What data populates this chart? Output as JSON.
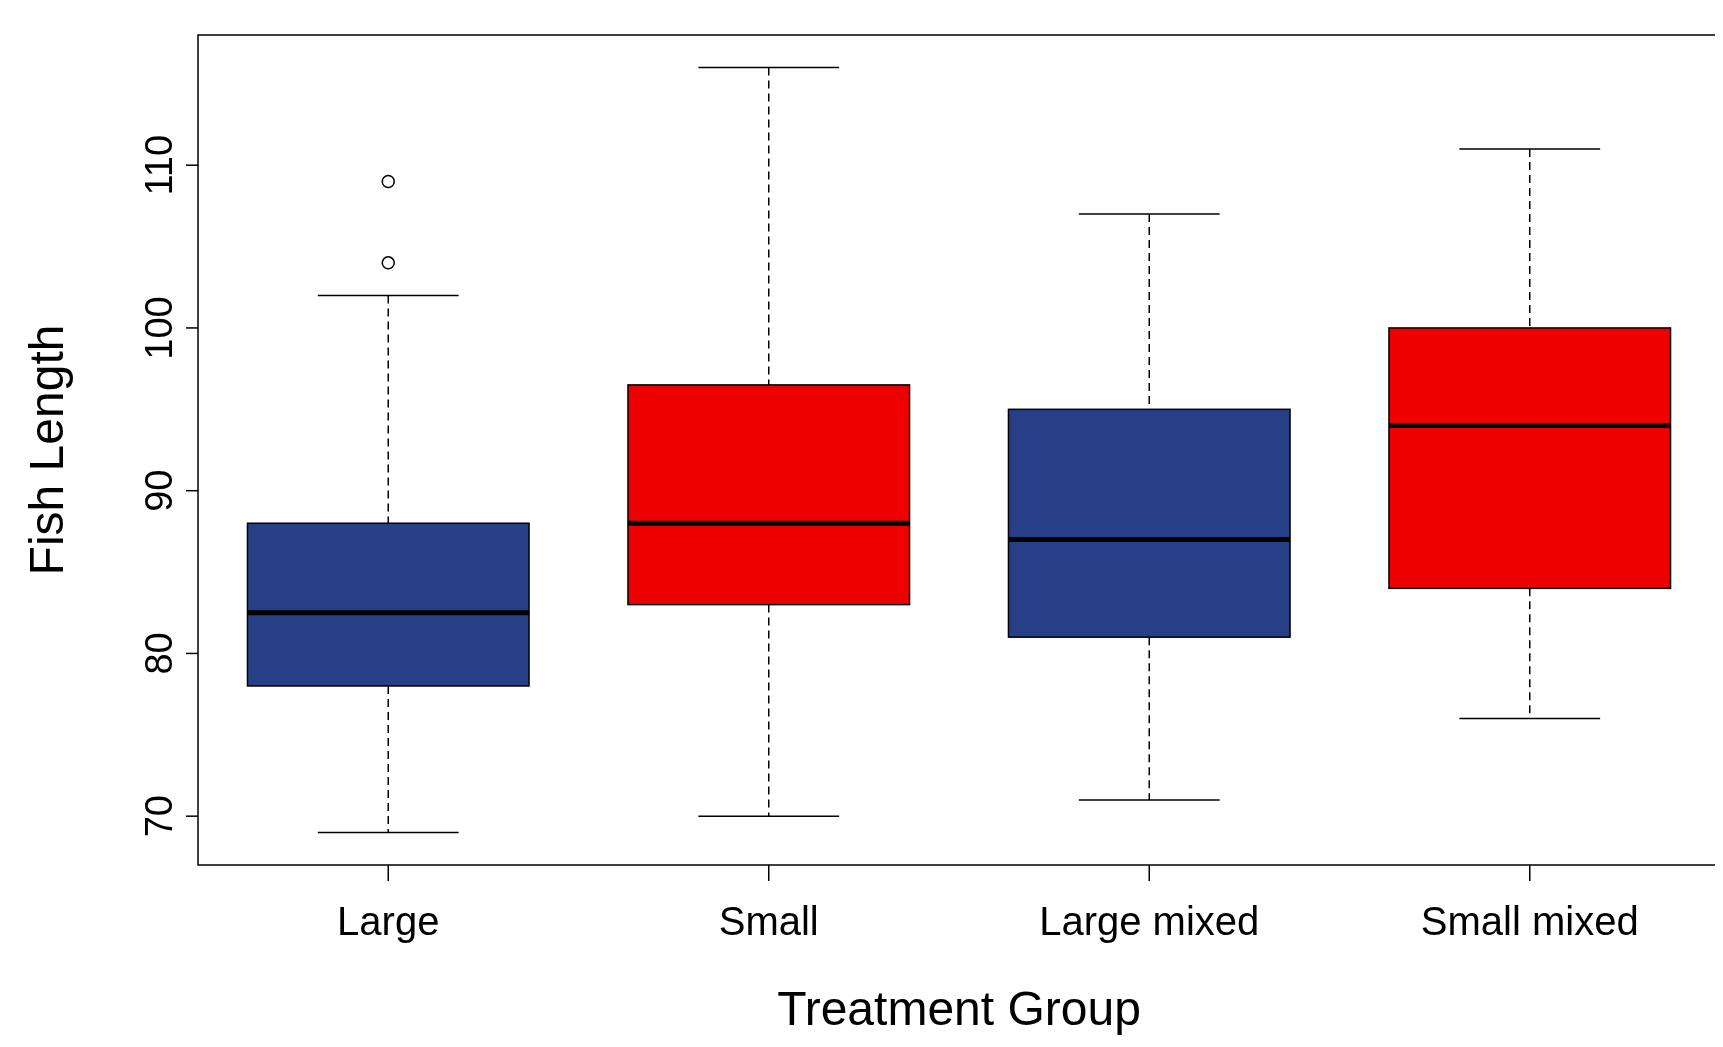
{
  "chart_data": {
    "type": "box",
    "xlabel": "Treatment Group",
    "ylabel": "Fish Length",
    "categories": [
      "Large",
      "Small",
      "Large mixed",
      "Small mixed"
    ],
    "colors": [
      "#273f87",
      "#ee0000",
      "#273f87",
      "#ee0000"
    ],
    "boxes": [
      {
        "low": 69,
        "q1": 78,
        "median": 82.5,
        "q3": 88,
        "high": 102,
        "outliers": [
          104,
          109
        ]
      },
      {
        "low": 70,
        "q1": 83,
        "median": 88,
        "q3": 96.5,
        "high": 116
      },
      {
        "low": 71,
        "q1": 81,
        "median": 87,
        "q3": 95,
        "high": 107
      },
      {
        "low": 76,
        "q1": 84,
        "median": 94,
        "q3": 100,
        "high": 111
      }
    ],
    "ylim": [
      67,
      118
    ],
    "yticks": [
      70,
      80,
      90,
      100,
      110
    ],
    "grid": false,
    "line_style": "dashed"
  }
}
